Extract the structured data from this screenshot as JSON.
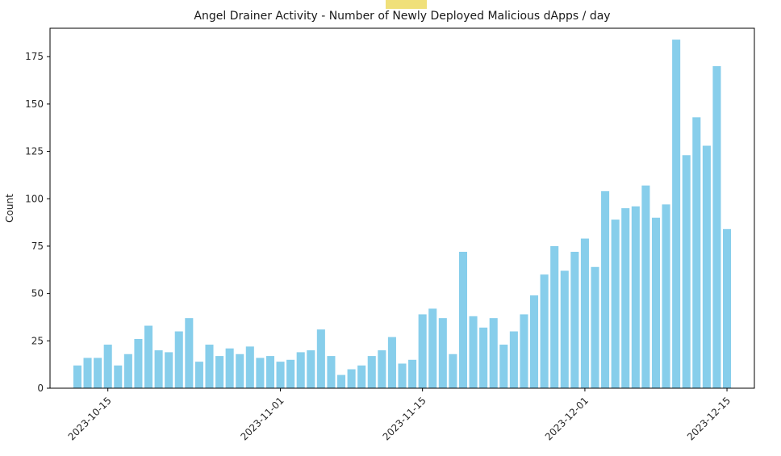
{
  "page": {
    "background": "#ffffff"
  },
  "highlight": {
    "color": "#f0e07a"
  },
  "chart_data": {
    "type": "bar",
    "title": "Angel Drainer Activity - Number of Newly Deployed Malicious dApps / day",
    "xlabel": "",
    "ylabel": "Count",
    "bar_color": "#87CEEB",
    "axis_color": "#000000",
    "tick_label_color": "#262626",
    "grid": false,
    "legend": null,
    "ylim": [
      0,
      190
    ],
    "yticks": [
      0,
      25,
      50,
      75,
      100,
      125,
      150,
      175
    ],
    "xticks": [
      "2023-10-15",
      "2023-11-01",
      "2023-11-15",
      "2023-12-01",
      "2023-12-15"
    ],
    "x": [
      "2023-10-12",
      "2023-10-13",
      "2023-10-14",
      "2023-10-15",
      "2023-10-16",
      "2023-10-17",
      "2023-10-18",
      "2023-10-19",
      "2023-10-20",
      "2023-10-21",
      "2023-10-22",
      "2023-10-23",
      "2023-10-24",
      "2023-10-25",
      "2023-10-26",
      "2023-10-27",
      "2023-10-28",
      "2023-10-29",
      "2023-10-30",
      "2023-10-31",
      "2023-11-01",
      "2023-11-02",
      "2023-11-03",
      "2023-11-04",
      "2023-11-05",
      "2023-11-06",
      "2023-11-07",
      "2023-11-08",
      "2023-11-09",
      "2023-11-10",
      "2023-11-11",
      "2023-11-12",
      "2023-11-13",
      "2023-11-14",
      "2023-11-15",
      "2023-11-16",
      "2023-11-17",
      "2023-11-18",
      "2023-11-19",
      "2023-11-20",
      "2023-11-21",
      "2023-11-22",
      "2023-11-23",
      "2023-11-24",
      "2023-11-25",
      "2023-11-26",
      "2023-11-27",
      "2023-11-28",
      "2023-11-29",
      "2023-11-30",
      "2023-12-01",
      "2023-12-02",
      "2023-12-03",
      "2023-12-04",
      "2023-12-05",
      "2023-12-06",
      "2023-12-07",
      "2023-12-08",
      "2023-12-09",
      "2023-12-10",
      "2023-12-11",
      "2023-12-12",
      "2023-12-13",
      "2023-12-14",
      "2023-12-15"
    ],
    "values": [
      12,
      16,
      16,
      23,
      12,
      18,
      26,
      33,
      20,
      19,
      30,
      37,
      14,
      23,
      17,
      21,
      18,
      22,
      16,
      17,
      14,
      15,
      19,
      20,
      31,
      17,
      7,
      10,
      12,
      17,
      20,
      27,
      13,
      15,
      39,
      42,
      37,
      18,
      72,
      38,
      32,
      37,
      23,
      30,
      39,
      49,
      60,
      75,
      62,
      72,
      79,
      64,
      104,
      89,
      95,
      96,
      107,
      90,
      97,
      184,
      123,
      143,
      128,
      170,
      84
    ]
  }
}
